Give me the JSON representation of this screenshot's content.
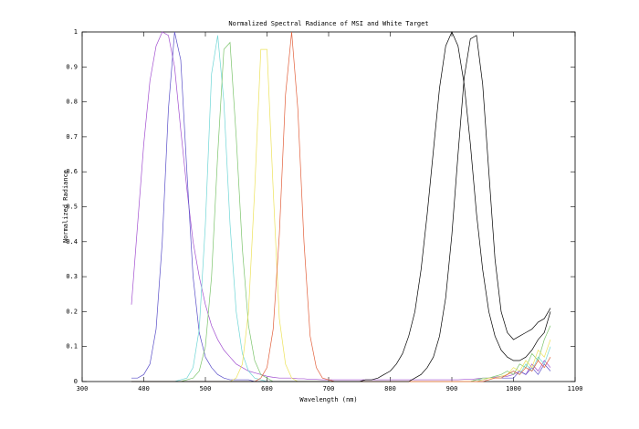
{
  "chart_data": {
    "type": "line",
    "title": "Normalized Spectral Radiance of MSI and White Target",
    "x_label": "Wavelength (nm)",
    "y_label": "Normalized Radiance",
    "xlim": [
      300,
      1100
    ],
    "xticks": [
      300,
      400,
      500,
      600,
      700,
      800,
      900,
      1000,
      1100
    ],
    "ylim": [
      0,
      1
    ],
    "yticks": [
      0,
      0.1,
      0.2,
      0.3,
      0.4,
      0.5,
      0.6,
      0.7,
      0.8,
      0.9,
      1
    ],
    "grid": false,
    "x": [
      380,
      390,
      400,
      410,
      420,
      430,
      440,
      450,
      460,
      470,
      480,
      490,
      500,
      510,
      520,
      530,
      540,
      550,
      560,
      570,
      580,
      590,
      600,
      610,
      620,
      630,
      640,
      650,
      660,
      670,
      680,
      690,
      700,
      710,
      720,
      730,
      740,
      750,
      760,
      770,
      780,
      790,
      800,
      810,
      820,
      830,
      840,
      850,
      860,
      870,
      880,
      890,
      900,
      910,
      920,
      930,
      940,
      950,
      960,
      970,
      980,
      990,
      1000,
      1010,
      1020,
      1030,
      1040,
      1050,
      1060
    ],
    "series": [
      {
        "color": "#a24fd0",
        "values": [
          0.22,
          0.45,
          0.68,
          0.86,
          0.96,
          1,
          0.99,
          0.9,
          0.72,
          0.55,
          0.4,
          0.3,
          0.22,
          0.16,
          0.12,
          0.09,
          0.07,
          0.05,
          0.04,
          0.03,
          0.025,
          0.02,
          0.015,
          0.012,
          0.01,
          0.01,
          0.01,
          0.008,
          0.008,
          0.006,
          0.006,
          0.005,
          0.005,
          0.005,
          0.005,
          0.005,
          0.005,
          0.005,
          0.005,
          0.005,
          0.005,
          0.005,
          0.005,
          0.005,
          0.005,
          0.005,
          0.005,
          0.005,
          0.005,
          0.005,
          0.005,
          0.005,
          0.005,
          0.005,
          0.006,
          0.006,
          0.008,
          0.01,
          0.01,
          0.012,
          0.015,
          0.015,
          0.02,
          0.03,
          0.02,
          0.05,
          0.03,
          0.06,
          0.04
        ]
      },
      {
        "color": "#5a4fc8",
        "values": [
          0.01,
          0.01,
          0.02,
          0.05,
          0.15,
          0.4,
          0.78,
          1,
          0.92,
          0.6,
          0.3,
          0.14,
          0.07,
          0.04,
          0.02,
          0.01,
          0.005,
          0.005,
          0.005,
          0.005,
          0,
          0,
          0,
          0,
          0,
          0,
          0,
          0,
          0,
          0,
          0,
          0,
          0,
          0,
          0,
          0,
          0,
          0,
          0,
          0,
          0,
          0,
          0,
          0,
          0,
          0,
          0,
          0,
          0,
          0,
          0,
          0,
          0,
          0,
          0,
          0,
          0.005,
          0.005,
          0.01,
          0.01,
          0.01,
          0.01,
          0.01,
          0.03,
          0.02,
          0.04,
          0.02,
          0.05,
          0.03
        ]
      },
      {
        "color": "#6fd6d6",
        "values": [
          0,
          0,
          0,
          0,
          0,
          0,
          0,
          0,
          0.005,
          0.01,
          0.04,
          0.15,
          0.45,
          0.88,
          0.99,
          0.8,
          0.45,
          0.2,
          0.08,
          0.03,
          0.01,
          0.005,
          0,
          0,
          0,
          0,
          0,
          0,
          0,
          0,
          0,
          0,
          0,
          0,
          0,
          0,
          0,
          0,
          0,
          0,
          0,
          0,
          0,
          0,
          0,
          0,
          0,
          0,
          0,
          0,
          0,
          0,
          0,
          0,
          0,
          0,
          0.005,
          0.005,
          0.01,
          0.01,
          0.01,
          0.02,
          0.03,
          0.02,
          0.05,
          0.03,
          0.07,
          0.05,
          0.1
        ]
      },
      {
        "color": "#7cc46c",
        "values": [
          0,
          0,
          0,
          0,
          0,
          0,
          0,
          0,
          0,
          0.005,
          0.01,
          0.03,
          0.1,
          0.3,
          0.65,
          0.95,
          0.97,
          0.7,
          0.38,
          0.16,
          0.06,
          0.02,
          0.01,
          0,
          0,
          0,
          0,
          0,
          0,
          0,
          0,
          0,
          0,
          0,
          0,
          0,
          0,
          0,
          0,
          0,
          0,
          0,
          0,
          0,
          0,
          0,
          0,
          0,
          0,
          0,
          0,
          0,
          0,
          0,
          0,
          0,
          0.005,
          0.01,
          0.01,
          0.015,
          0.02,
          0.03,
          0.02,
          0.05,
          0.04,
          0.08,
          0.06,
          0.12,
          0.16
        ]
      },
      {
        "color": "#ece25a",
        "values": [
          0,
          0,
          0,
          0,
          0,
          0,
          0,
          0,
          0,
          0,
          0,
          0,
          0,
          0,
          0,
          0,
          0,
          0.01,
          0.05,
          0.2,
          0.55,
          0.95,
          0.95,
          0.55,
          0.18,
          0.05,
          0.01,
          0,
          0,
          0,
          0,
          0,
          0,
          0,
          0,
          0,
          0,
          0,
          0,
          0,
          0,
          0,
          0,
          0,
          0,
          0,
          0,
          0,
          0,
          0,
          0,
          0,
          0,
          0,
          0,
          0,
          0,
          0.005,
          0.01,
          0.01,
          0.015,
          0.02,
          0.04,
          0.03,
          0.06,
          0.04,
          0.09,
          0.07,
          0.12
        ]
      },
      {
        "color": "#e2603c",
        "values": [
          0,
          0,
          0,
          0,
          0,
          0,
          0,
          0,
          0,
          0,
          0,
          0,
          0,
          0,
          0,
          0,
          0,
          0,
          0,
          0,
          0,
          0.01,
          0.04,
          0.15,
          0.42,
          0.82,
          1,
          0.78,
          0.4,
          0.13,
          0.04,
          0.01,
          0.005,
          0,
          0,
          0,
          0,
          0,
          0,
          0,
          0,
          0,
          0,
          0,
          0,
          0,
          0,
          0,
          0,
          0,
          0,
          0,
          0,
          0,
          0,
          0,
          0,
          0,
          0.005,
          0.01,
          0.01,
          0.02,
          0.03,
          0.02,
          0.04,
          0.03,
          0.06,
          0.04,
          0.07
        ]
      },
      {
        "color": "#000000",
        "values": [
          0,
          0,
          0,
          0,
          0,
          0,
          0,
          0,
          0,
          0,
          0,
          0,
          0,
          0,
          0,
          0,
          0,
          0,
          0,
          0,
          0,
          0,
          0,
          0,
          0,
          0,
          0,
          0,
          0,
          0,
          0,
          0,
          0,
          0,
          0,
          0,
          0,
          0,
          0.005,
          0.005,
          0.01,
          0.02,
          0.03,
          0.05,
          0.08,
          0.13,
          0.2,
          0.32,
          0.48,
          0.66,
          0.84,
          0.96,
          1,
          0.96,
          0.85,
          0.68,
          0.48,
          0.32,
          0.2,
          0.13,
          0.09,
          0.07,
          0.06,
          0.06,
          0.07,
          0.09,
          0.12,
          0.14,
          0.2
        ]
      },
      {
        "color": "#000000",
        "values": [
          0,
          0,
          0,
          0,
          0,
          0,
          0,
          0,
          0,
          0,
          0,
          0,
          0,
          0,
          0,
          0,
          0,
          0,
          0,
          0,
          0,
          0,
          0,
          0,
          0,
          0,
          0,
          0,
          0,
          0,
          0,
          0,
          0,
          0,
          0,
          0,
          0,
          0,
          0,
          0,
          0,
          0,
          0,
          0,
          0,
          0,
          0.01,
          0.02,
          0.04,
          0.07,
          0.13,
          0.24,
          0.42,
          0.65,
          0.87,
          0.98,
          0.99,
          0.85,
          0.6,
          0.35,
          0.2,
          0.14,
          0.12,
          0.13,
          0.14,
          0.15,
          0.17,
          0.18,
          0.21
        ]
      }
    ]
  }
}
